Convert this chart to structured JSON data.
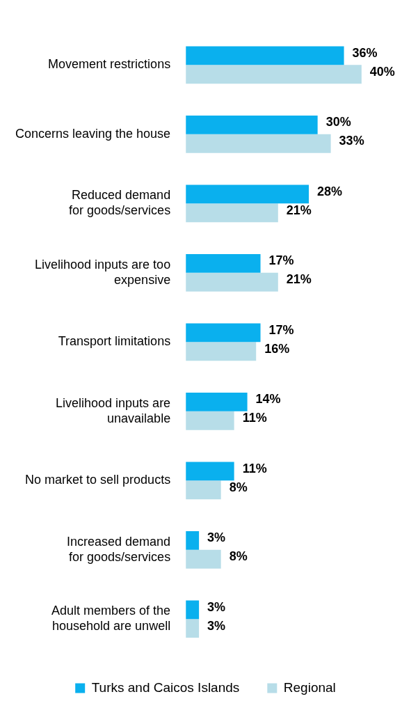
{
  "chart_data": {
    "type": "bar",
    "orientation": "horizontal",
    "legend": "bottom",
    "categories": [
      "Movement restrictions",
      "Concerns leaving the house",
      "Reduced demand\nfor goods/services",
      "Livelihood inputs are too\nexpensive",
      "Transport limitations",
      "Livelihood inputs are\nunavailable",
      "No market to sell products",
      "Increased demand\nfor goods/services",
      "Adult members of the\nhousehold are unwell"
    ],
    "series": [
      {
        "name": "Turks and Caicos Islands",
        "color": "#0ab0ee",
        "values": [
          36,
          30,
          28,
          17,
          17,
          14,
          11,
          3,
          3
        ],
        "value_labels": [
          "36%",
          "30%",
          "28%",
          "17%",
          "17%",
          "14%",
          "11%",
          "3%",
          "3%"
        ]
      },
      {
        "name": "Regional",
        "color": "#b7dde8",
        "values": [
          40,
          33,
          21,
          21,
          16,
          11,
          8,
          8,
          3
        ],
        "value_labels": [
          "40%",
          "33%",
          "21%",
          "21%",
          "16%",
          "11%",
          "8%",
          "8%",
          "3%"
        ]
      }
    ]
  }
}
